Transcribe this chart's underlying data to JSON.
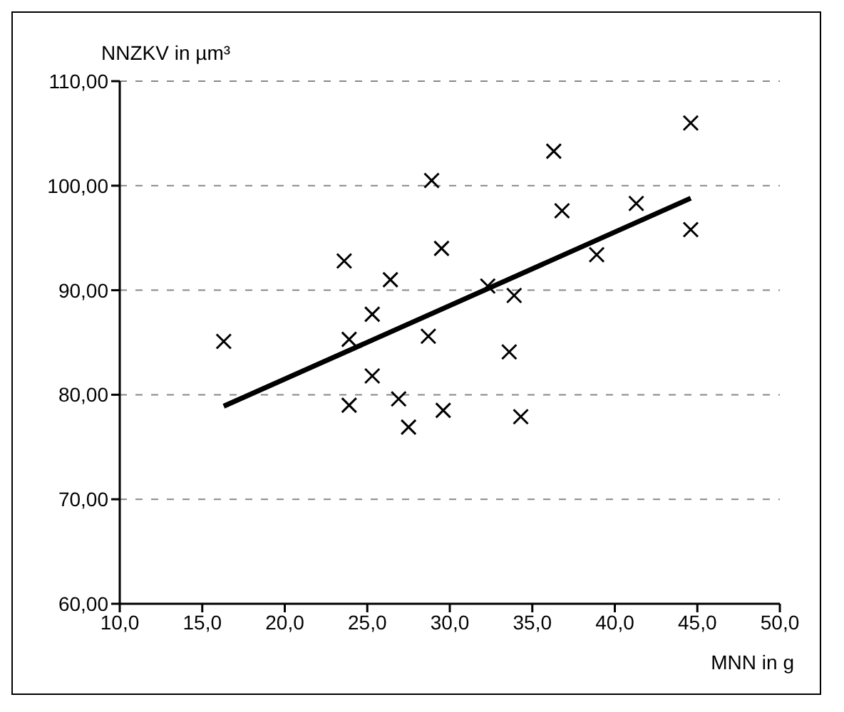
{
  "chart_data": {
    "type": "scatter",
    "xlabel": "MNN in g",
    "ylabel": "NNZKV in µm³",
    "xlim": [
      10,
      50
    ],
    "ylim": [
      60,
      110
    ],
    "xticks": [
      {
        "value": 10,
        "label": "10,0"
      },
      {
        "value": 15,
        "label": "15,0"
      },
      {
        "value": 20,
        "label": "20,0"
      },
      {
        "value": 25,
        "label": "25,0"
      },
      {
        "value": 30,
        "label": "30,0"
      },
      {
        "value": 35,
        "label": "35,0"
      },
      {
        "value": 40,
        "label": "40,0"
      },
      {
        "value": 45,
        "label": "45,0"
      },
      {
        "value": 50,
        "label": "50,0"
      }
    ],
    "yticks": [
      {
        "value": 60,
        "label": "60,00"
      },
      {
        "value": 70,
        "label": "70,00"
      },
      {
        "value": 80,
        "label": "80,00"
      },
      {
        "value": 90,
        "label": "90,00"
      },
      {
        "value": 100,
        "label": "100,00"
      },
      {
        "value": 110,
        "label": "110,00"
      }
    ],
    "grid": "y",
    "marker": "cross",
    "series": [
      {
        "color": "#000000",
        "x": [
          16.3,
          23.6,
          23.9,
          23.9,
          25.3,
          25.3,
          26.4,
          26.9,
          27.5,
          28.7,
          28.9,
          29.5,
          29.6,
          32.3,
          33.9,
          33.6,
          34.3,
          36.3,
          36.8,
          38.9,
          41.3,
          44.6,
          44.6
        ],
        "values": [
          85.1,
          92.8,
          85.3,
          79.0,
          87.7,
          81.8,
          91.0,
          79.6,
          76.9,
          85.6,
          100.5,
          94.0,
          78.5,
          90.4,
          89.5,
          84.1,
          77.9,
          103.3,
          97.6,
          93.4,
          98.3,
          106.0,
          95.8
        ]
      },
      {
        "type": "line",
        "color": "#000000",
        "marker": "none",
        "line_style": "solid",
        "x": [
          16.3,
          44.6
        ],
        "values": [
          78.9,
          98.8
        ]
      }
    ]
  }
}
